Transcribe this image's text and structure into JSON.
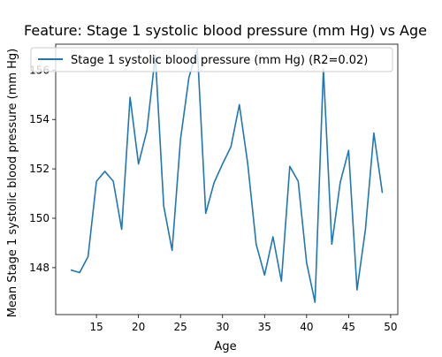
{
  "chart_data": {
    "type": "line",
    "title": "Feature: Stage 1 systolic blood pressure (mm Hg) vs Age",
    "xlabel": "Age",
    "ylabel": "Mean Stage 1 systolic blood pressure (mm Hg)",
    "xlim": [
      10.15,
      50.85
    ],
    "ylim": [
      146.1,
      157.05
    ],
    "xticks": [
      15,
      20,
      25,
      30,
      35,
      40,
      45,
      50
    ],
    "yticks": [
      148,
      150,
      152,
      154,
      156
    ],
    "grid": false,
    "legend_position": "top-right",
    "series": [
      {
        "name": "Stage 1 systolic blood pressure (mm Hg) (R2=0.02)",
        "color": "#1f77b4",
        "x": [
          12,
          13,
          14,
          15,
          16,
          17,
          18,
          19,
          20,
          21,
          22,
          23,
          24,
          25,
          26,
          27,
          28,
          29,
          30,
          31,
          32,
          33,
          34,
          35,
          36,
          37,
          38,
          39,
          40,
          41,
          42,
          43,
          44,
          45,
          46,
          47,
          48,
          49
        ],
        "y": [
          147.9,
          147.8,
          148.45,
          151.5,
          151.9,
          151.5,
          149.55,
          154.9,
          152.2,
          153.55,
          156.6,
          150.5,
          148.7,
          153.2,
          155.7,
          156.85,
          150.2,
          151.45,
          152.2,
          152.9,
          154.6,
          152.2,
          148.95,
          147.7,
          149.25,
          147.45,
          152.1,
          151.5,
          148.2,
          146.6,
          156.05,
          148.95,
          151.45,
          152.75,
          147.1,
          149.55,
          153.45,
          151.05
        ]
      }
    ]
  }
}
